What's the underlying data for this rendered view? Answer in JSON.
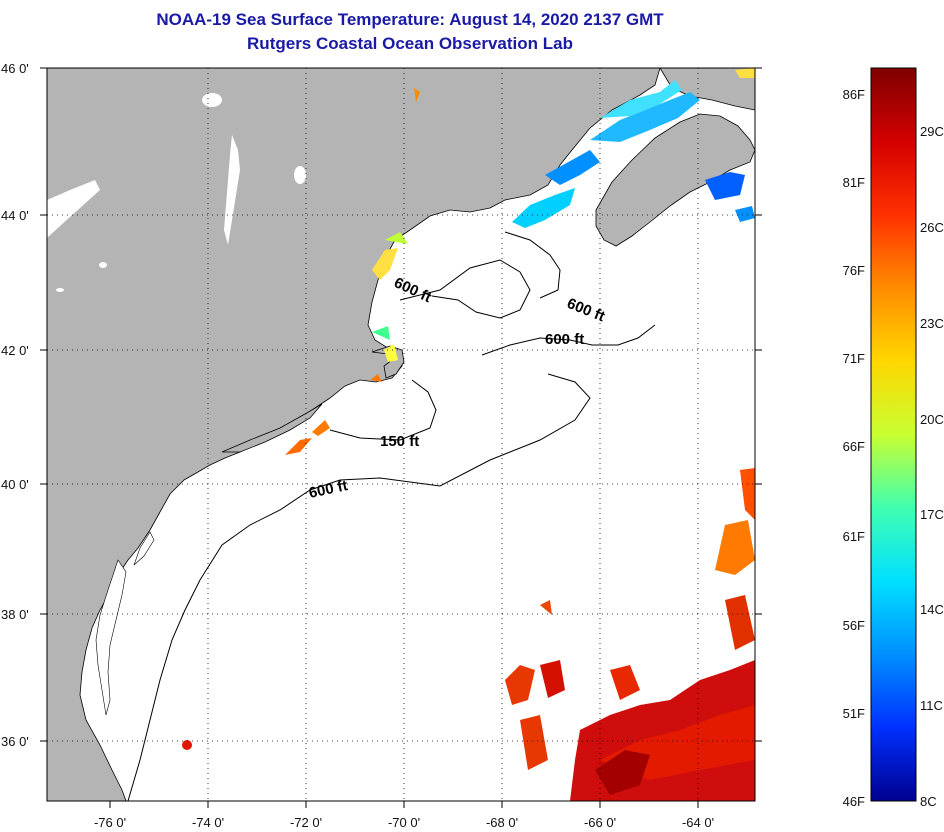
{
  "title": {
    "line1": "NOAA-19 Sea Surface Temperature:  August 14, 2020 2137 GMT",
    "line2": "Rutgers Coastal Ocean Observation Lab"
  },
  "map": {
    "lat_labels": [
      "46 0'",
      "44 0'",
      "42 0'",
      "40 0'",
      "38 0'",
      "36 0'"
    ],
    "lon_labels": [
      "-76 0'",
      "-74 0'",
      "-72 0'",
      "-70 0'",
      "-68 0'",
      "-66 0'",
      "-64 0'"
    ],
    "contour_labels": [
      "600 ft",
      "600 ft",
      "600 ft",
      "150 ft",
      "600 ft"
    ],
    "land_color": "#b4b4b4",
    "ocean_color": "#ffffff"
  },
  "colorbar": {
    "fahrenheit_labels": [
      "86F",
      "81F",
      "76F",
      "71F",
      "66F",
      "61F",
      "56F",
      "51F",
      "46F"
    ],
    "celsius_labels": [
      "29C",
      "26C",
      "23C",
      "20C",
      "17C",
      "14C",
      "11C",
      "8C"
    ],
    "gradient_colors": [
      "#7f0000",
      "#d40000",
      "#ff3000",
      "#ff8c00",
      "#ffd700",
      "#c8ff30",
      "#40ffb0",
      "#00e0ff",
      "#0090ff",
      "#0030ff",
      "#00008f"
    ]
  }
}
